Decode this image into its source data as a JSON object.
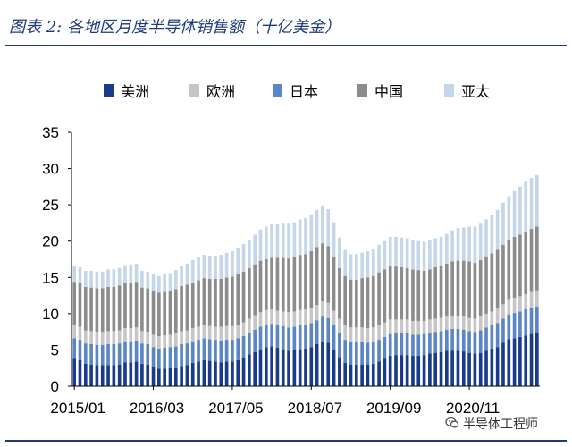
{
  "title": "图表 2:  各地区月度半导体销售额（十亿美金）",
  "watermark": "半导体工程师",
  "chart_data": {
    "type": "bar",
    "stacked": true,
    "title": "图表 2:  各地区月度半导体销售额（十亿美金）",
    "xlabel": "",
    "ylabel": "",
    "ylim": [
      0,
      35
    ],
    "yticks": [
      "0",
      "5",
      "10",
      "15",
      "20",
      "25",
      "30",
      "35"
    ],
    "x_tick_labels": [
      "2015/01",
      "2016/03",
      "2017/05",
      "2018/07",
      "2019/09",
      "2020/11"
    ],
    "x_tick_indices": [
      0,
      14,
      28,
      42,
      56,
      70
    ],
    "grid": false,
    "legend_position": "top",
    "colors": {
      "美洲": "#1a3a8a",
      "欧洲": "#c6c6c6",
      "日本": "#5b86c4",
      "中国": "#8c8c8c",
      "亚太": "#c5d6ea"
    },
    "categories": [
      "2015/01",
      "2015/02",
      "2015/03",
      "2015/04",
      "2015/05",
      "2015/06",
      "2015/07",
      "2015/08",
      "2015/09",
      "2015/10",
      "2015/11",
      "2015/12",
      "2016/01",
      "2016/02",
      "2016/03",
      "2016/04",
      "2016/05",
      "2016/06",
      "2016/07",
      "2016/08",
      "2016/09",
      "2016/10",
      "2016/11",
      "2016/12",
      "2017/01",
      "2017/02",
      "2017/03",
      "2017/04",
      "2017/05",
      "2017/06",
      "2017/07",
      "2017/08",
      "2017/09",
      "2017/10",
      "2017/11",
      "2017/12",
      "2018/01",
      "2018/02",
      "2018/03",
      "2018/04",
      "2018/05",
      "2018/06",
      "2018/07",
      "2018/08",
      "2018/09",
      "2018/10",
      "2018/11",
      "2018/12",
      "2019/01",
      "2019/02",
      "2019/03",
      "2019/04",
      "2019/05",
      "2019/06",
      "2019/07",
      "2019/08",
      "2019/09",
      "2019/10",
      "2019/11",
      "2019/12",
      "2020/01",
      "2020/02",
      "2020/03",
      "2020/04",
      "2020/05",
      "2020/06",
      "2020/07",
      "2020/08",
      "2020/09",
      "2020/10",
      "2020/11",
      "2020/12",
      "2021/01",
      "2021/02",
      "2021/03",
      "2021/04",
      "2021/05",
      "2021/06",
      "2021/07",
      "2021/08",
      "2021/09",
      "2021/10",
      "2021/11"
    ],
    "series": [
      {
        "name": "美洲",
        "values": [
          3.8,
          3.6,
          3.1,
          3.0,
          2.9,
          2.9,
          2.9,
          2.9,
          3.0,
          3.3,
          3.3,
          3.4,
          3.1,
          3.0,
          2.6,
          2.4,
          2.4,
          2.5,
          2.5,
          2.8,
          2.9,
          3.2,
          3.4,
          3.6,
          3.5,
          3.4,
          3.3,
          3.4,
          3.4,
          3.6,
          3.9,
          4.4,
          4.7,
          5.1,
          5.4,
          5.5,
          5.3,
          5.1,
          4.9,
          5.0,
          5.1,
          5.2,
          5.4,
          5.8,
          6.2,
          6.0,
          5.0,
          4.0,
          3.2,
          3.0,
          3.0,
          3.0,
          3.0,
          3.1,
          3.4,
          3.8,
          4.2,
          4.3,
          4.3,
          4.3,
          4.2,
          4.2,
          4.3,
          4.5,
          4.6,
          4.7,
          4.9,
          4.9,
          4.9,
          4.8,
          4.6,
          4.5,
          4.6,
          4.9,
          5.2,
          5.4,
          6.0,
          6.5,
          6.6,
          6.8,
          7.0,
          7.2,
          7.3
        ]
      },
      {
        "name": "日本",
        "values": [
          2.8,
          2.8,
          2.8,
          2.8,
          2.8,
          2.8,
          2.9,
          2.9,
          2.9,
          2.9,
          2.9,
          2.9,
          2.8,
          2.8,
          2.8,
          2.8,
          2.9,
          2.9,
          3.0,
          3.0,
          3.0,
          3.0,
          3.0,
          3.0,
          3.0,
          3.0,
          3.0,
          3.0,
          3.0,
          3.0,
          3.0,
          3.0,
          3.1,
          3.1,
          3.1,
          3.1,
          3.1,
          3.2,
          3.2,
          3.2,
          3.3,
          3.3,
          3.3,
          3.3,
          3.4,
          3.4,
          3.4,
          3.3,
          3.2,
          3.1,
          3.1,
          3.1,
          3.0,
          3.0,
          3.0,
          3.0,
          3.0,
          3.0,
          3.0,
          3.0,
          2.9,
          2.9,
          2.9,
          2.9,
          2.9,
          2.9,
          2.9,
          3.0,
          3.0,
          3.0,
          3.0,
          3.0,
          3.1,
          3.2,
          3.2,
          3.3,
          3.3,
          3.4,
          3.5,
          3.5,
          3.6,
          3.6,
          3.7
        ]
      },
      {
        "name": "欧洲",
        "values": [
          1.8,
          1.8,
          1.8,
          1.8,
          1.8,
          1.8,
          1.8,
          1.8,
          1.8,
          1.8,
          1.8,
          1.8,
          1.7,
          1.7,
          1.7,
          1.7,
          1.7,
          1.7,
          1.8,
          1.8,
          1.8,
          1.8,
          1.8,
          1.8,
          1.8,
          1.8,
          1.9,
          1.9,
          1.9,
          1.9,
          1.9,
          1.9,
          2.0,
          2.0,
          2.0,
          2.0,
          2.0,
          2.0,
          2.1,
          2.1,
          2.1,
          2.1,
          2.1,
          2.1,
          2.1,
          2.1,
          2.0,
          2.0,
          2.0,
          2.0,
          2.0,
          2.0,
          2.0,
          2.0,
          2.0,
          2.0,
          2.0,
          1.9,
          1.9,
          1.9,
          1.9,
          1.9,
          1.8,
          1.8,
          1.8,
          1.8,
          1.8,
          1.8,
          1.8,
          1.8,
          1.8,
          1.8,
          1.9,
          1.9,
          1.9,
          2.0,
          2.0,
          2.0,
          2.1,
          2.1,
          2.1,
          2.2,
          2.2
        ]
      },
      {
        "name": "中国",
        "values": [
          6.0,
          6.0,
          6.0,
          6.0,
          6.0,
          6.0,
          6.1,
          6.1,
          6.2,
          6.2,
          6.3,
          6.3,
          6.0,
          6.0,
          6.0,
          6.0,
          6.0,
          6.0,
          6.1,
          6.2,
          6.3,
          6.3,
          6.4,
          6.5,
          6.5,
          6.6,
          6.6,
          6.7,
          6.8,
          6.9,
          7.0,
          7.0,
          7.0,
          7.1,
          7.0,
          7.1,
          7.3,
          7.4,
          7.4,
          7.5,
          7.6,
          7.6,
          7.8,
          8.0,
          8.0,
          7.8,
          7.4,
          7.0,
          6.8,
          6.6,
          6.6,
          6.8,
          7.0,
          7.1,
          7.3,
          7.3,
          7.4,
          7.3,
          7.2,
          7.1,
          7.1,
          7.0,
          6.9,
          6.9,
          7.1,
          7.2,
          7.3,
          7.5,
          7.6,
          7.7,
          7.8,
          7.7,
          7.8,
          7.9,
          8.0,
          8.1,
          8.2,
          8.3,
          8.4,
          8.5,
          8.6,
          8.7,
          8.8
        ]
      },
      {
        "name": "亚太",
        "values": [
          2.2,
          2.2,
          2.2,
          2.3,
          2.3,
          2.3,
          2.4,
          2.4,
          2.4,
          2.5,
          2.5,
          2.5,
          2.3,
          2.3,
          2.3,
          2.3,
          2.4,
          2.5,
          2.6,
          2.7,
          2.9,
          3.1,
          3.2,
          3.2,
          3.2,
          3.2,
          3.3,
          3.4,
          3.5,
          3.7,
          3.8,
          3.9,
          4.1,
          4.3,
          4.5,
          4.6,
          4.6,
          4.7,
          4.8,
          4.8,
          4.9,
          5.0,
          5.1,
          5.1,
          5.2,
          5.1,
          4.8,
          4.2,
          3.6,
          3.5,
          3.5,
          3.5,
          3.6,
          3.7,
          3.8,
          3.9,
          4.0,
          4.1,
          4.1,
          4.1,
          4.0,
          4.0,
          4.0,
          4.0,
          4.0,
          4.0,
          4.1,
          4.3,
          4.5,
          4.6,
          4.8,
          5.0,
          5.0,
          5.1,
          5.3,
          5.5,
          5.8,
          6.0,
          6.3,
          6.6,
          6.9,
          7.0,
          7.1
        ]
      }
    ]
  }
}
